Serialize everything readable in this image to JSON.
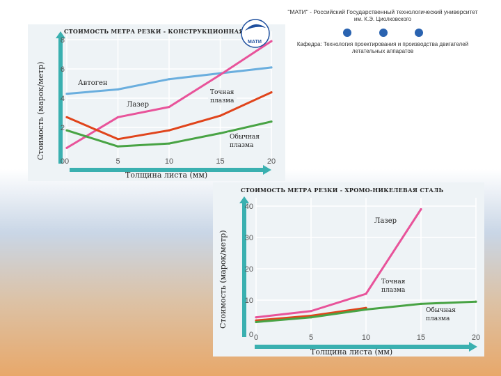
{
  "header": {
    "line1": "\"МАТИ\" - Российский Государственный технологический университет",
    "line2": "им. К.Э. Циолковского",
    "dept1": "Кафедра: Технология проектирования и производства двигателей",
    "dept2": "летательных аппаратов",
    "logo_text": "МАТИ"
  },
  "chart_data": [
    {
      "type": "line",
      "title": "СТОИМОСТЬ МЕТРА РЕЗКИ - КОНСТРУКЦИОННАЯ С",
      "xlabel": "Толщина листа (мм)",
      "ylabel": "Стоимость (марок/метр)",
      "xlim": [
        0,
        20
      ],
      "ylim": [
        0,
        8
      ],
      "x_ticks": [
        "0",
        "5",
        "10",
        "15",
        "20"
      ],
      "y_ticks": [
        "2",
        "4",
        "6",
        "8"
      ],
      "series": [
        {
          "name": "Автоген",
          "color": "#6aaede",
          "x": [
            0,
            5,
            10,
            15,
            20
          ],
          "y": [
            4.3,
            4.6,
            5.3,
            5.7,
            6.1
          ]
        },
        {
          "name": "Лазер",
          "color": "#e8539a",
          "x": [
            0,
            5,
            10,
            15,
            20
          ],
          "y": [
            0.6,
            2.7,
            3.4,
            5.6,
            7.9
          ]
        },
        {
          "name": "Точная плазма",
          "color": "#e0441b",
          "x": [
            0,
            5,
            10,
            15,
            20
          ],
          "y": [
            2.7,
            1.2,
            1.8,
            2.8,
            4.4
          ]
        },
        {
          "name": "Обычная плазма",
          "color": "#48a344",
          "x": [
            0,
            5,
            10,
            15,
            20
          ],
          "y": [
            1.8,
            0.7,
            0.9,
            1.6,
            2.4
          ]
        }
      ]
    },
    {
      "type": "line",
      "title": "СТОИМОСТЬ МЕТРА РЕЗКИ - ХРОМО-НИКЕЛЕВАЯ СТАЛЬ",
      "xlabel": "Толщина листа (мм)",
      "ylabel": "Стоимость (марок/метр)",
      "xlim": [
        0,
        20
      ],
      "ylim": [
        0,
        40
      ],
      "x_ticks": [
        "0",
        "5",
        "10",
        "15",
        "20"
      ],
      "y_ticks": [
        "10",
        "20",
        "30",
        "40"
      ],
      "series": [
        {
          "name": "Лазер",
          "color": "#e8539a",
          "x": [
            0,
            5,
            10,
            15
          ],
          "y": [
            4.5,
            6.5,
            12,
            39
          ]
        },
        {
          "name": "Точная плазма",
          "color": "#e0441b",
          "x": [
            0,
            5,
            10
          ],
          "y": [
            3.5,
            5,
            7.5
          ]
        },
        {
          "name": "Обычная плазма",
          "color": "#48a344",
          "x": [
            0,
            5,
            10,
            15,
            20
          ],
          "y": [
            3,
            4.5,
            7,
            8.8,
            9.5
          ]
        }
      ]
    }
  ]
}
